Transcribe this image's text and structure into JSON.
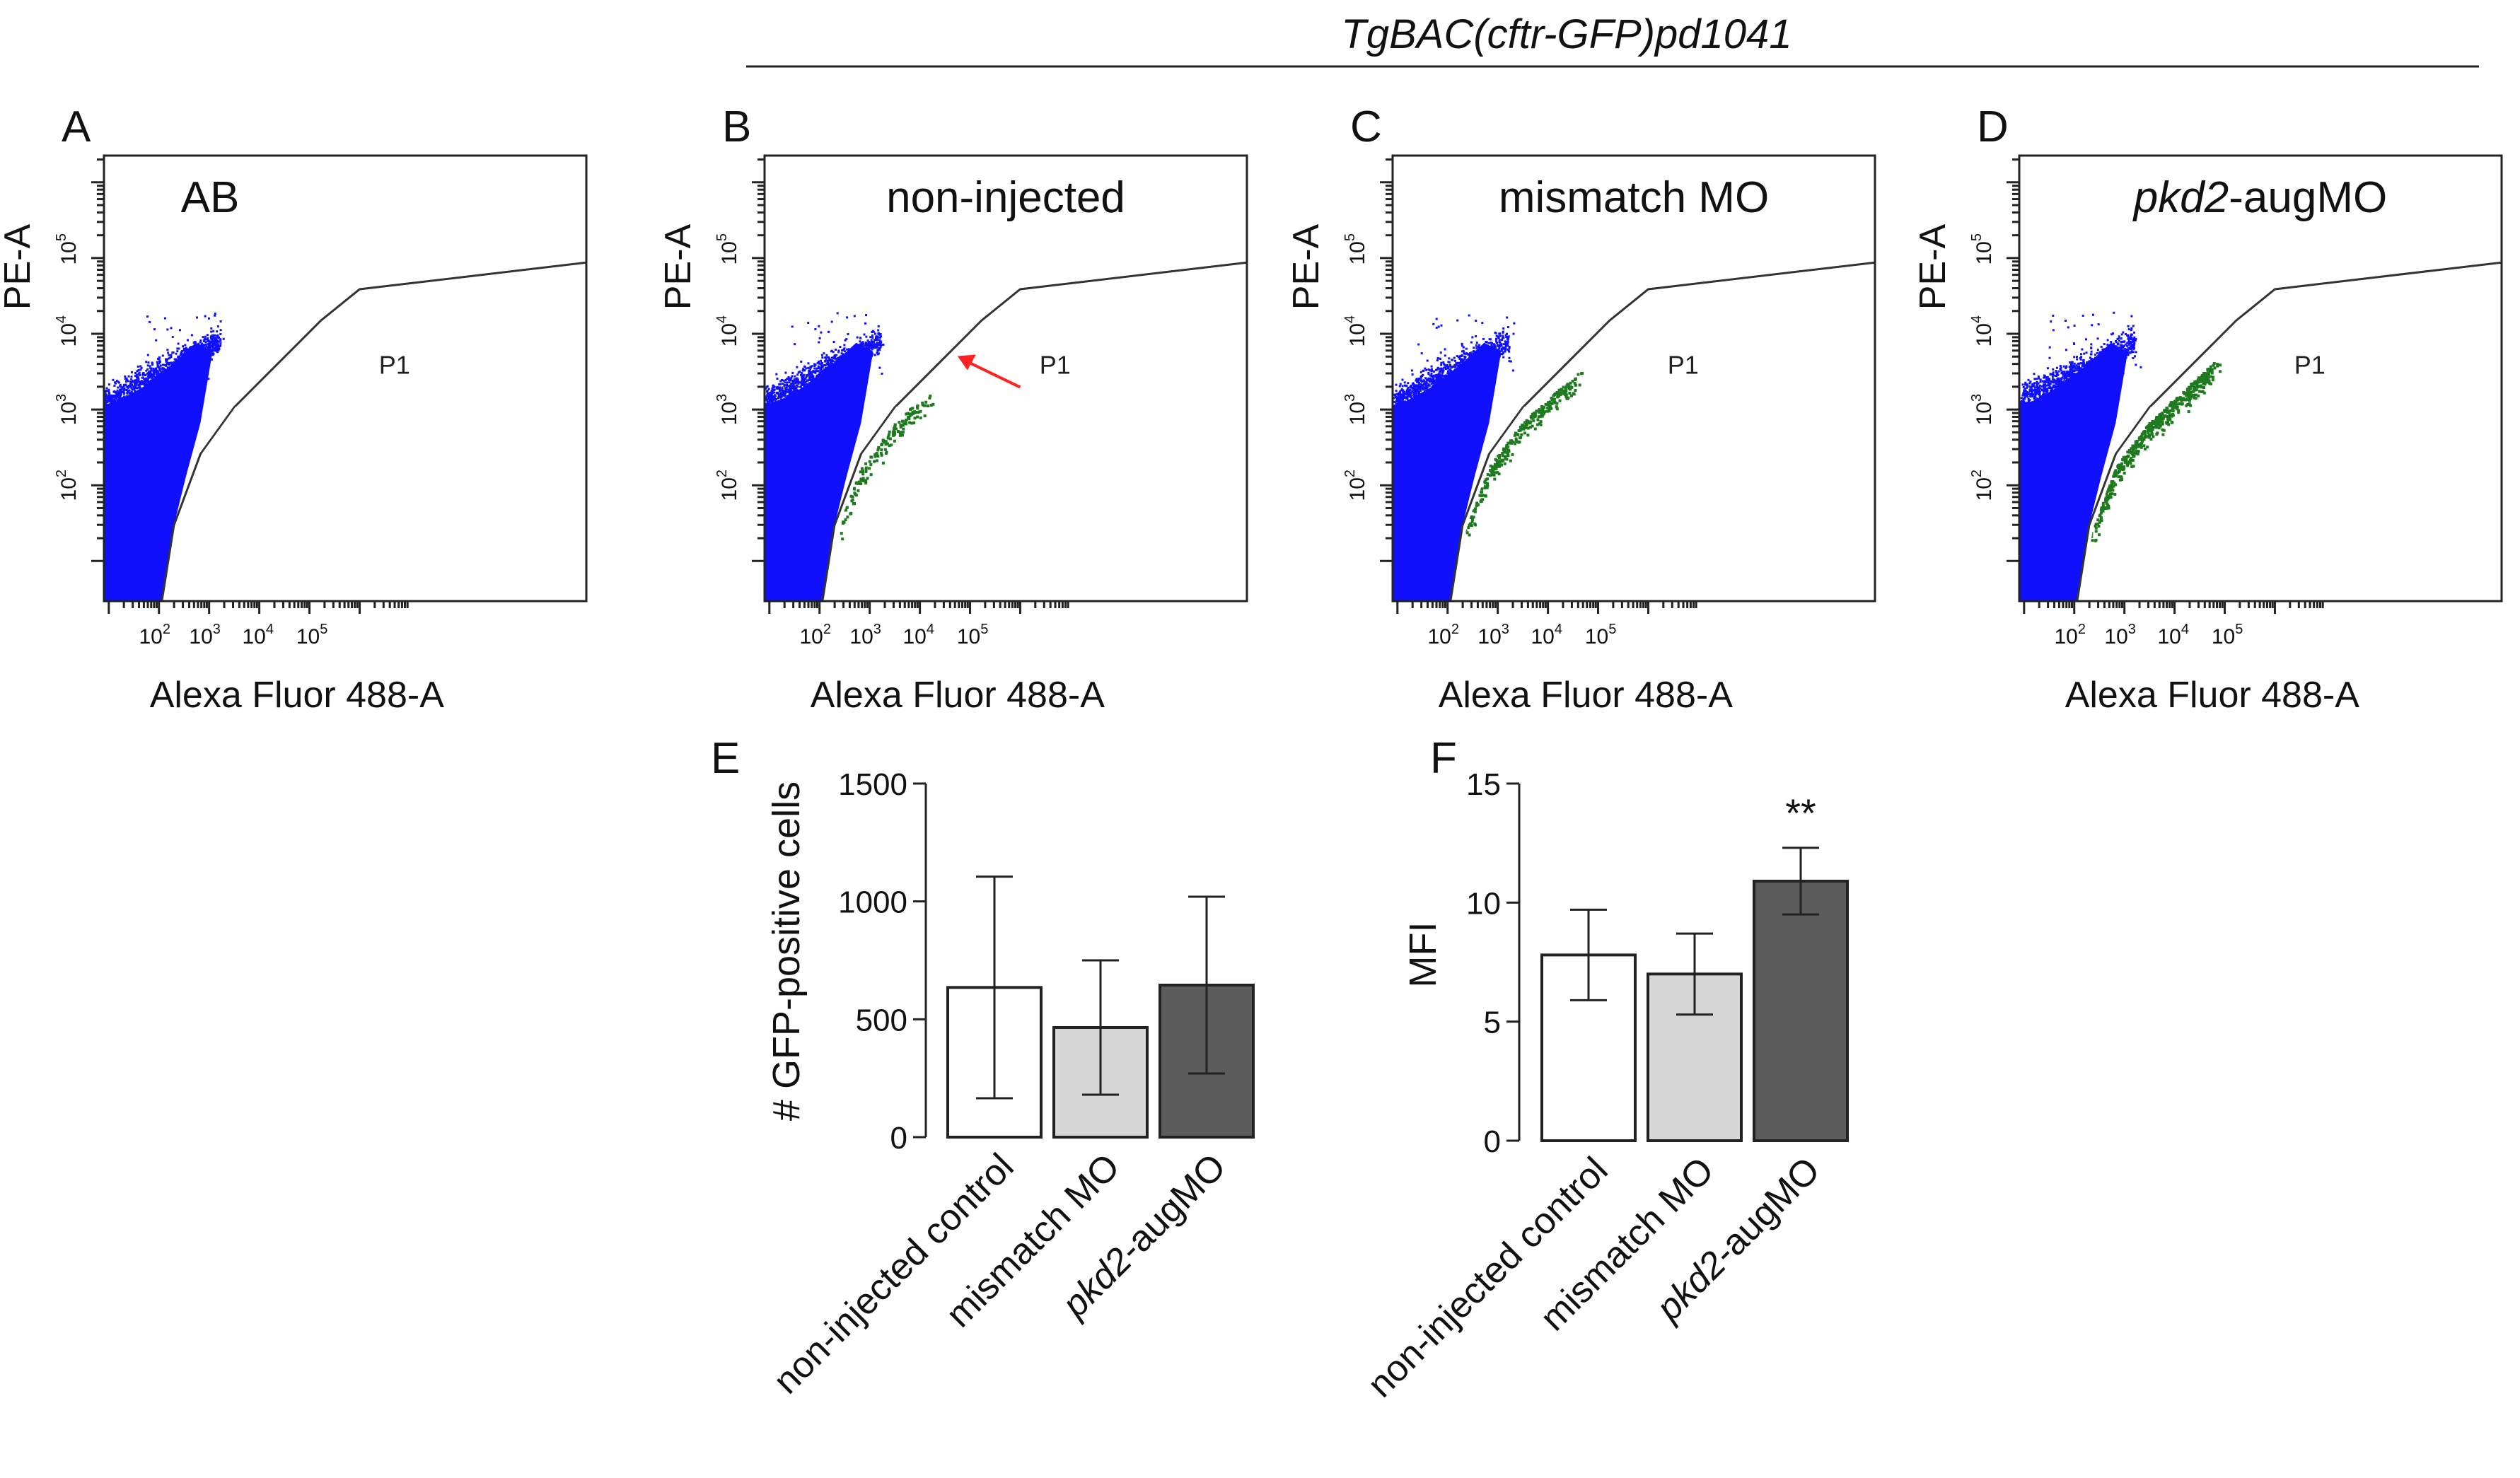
{
  "figure": {
    "header": "TgBAC(cftr-GFP)pd1041"
  },
  "colors": {
    "population": "#1010ff",
    "gfp_population": "#1f7a1f",
    "arrow": "#ff2020",
    "bar_white": "#ffffff",
    "bar_light": "#d6d6d6",
    "bar_dark": "#5c5c5c"
  },
  "flow_panels": [
    {
      "letter": "A",
      "sample": "AB",
      "italic_part": "",
      "gate": "P1",
      "xlabel": "Alexa Fluor 488-A",
      "ylabel": "PE-A",
      "green_events": 0,
      "green_spread": 0,
      "arrow": false
    },
    {
      "letter": "B",
      "sample": "non-injected",
      "italic_part": "",
      "gate": "P1",
      "xlabel": "Alexa Fluor 488-A",
      "ylabel": "PE-A",
      "green_events": 160,
      "green_spread": 0.8,
      "arrow": true
    },
    {
      "letter": "C",
      "sample": "mismatch  MO",
      "italic_part": "",
      "gate": "P1",
      "xlabel": "Alexa Fluor 488-A",
      "ylabel": "PE-A",
      "green_events": 300,
      "green_spread": 1.0,
      "arrow": false
    },
    {
      "letter": "D",
      "sample": "-augMO",
      "italic_part": "pkd2",
      "gate": "P1",
      "xlabel": "Alexa Fluor 488-A",
      "ylabel": "PE-A",
      "green_events": 520,
      "green_spread": 1.1,
      "arrow": false
    }
  ],
  "flow_ticks": {
    "x": [
      {
        "base": "10",
        "exp": "2"
      },
      {
        "base": "10",
        "exp": "3"
      },
      {
        "base": "10",
        "exp": "4"
      },
      {
        "base": "10",
        "exp": "5"
      }
    ],
    "y": [
      {
        "base": "10",
        "exp": "2"
      },
      {
        "base": "10",
        "exp": "3"
      },
      {
        "base": "10",
        "exp": "4"
      },
      {
        "base": "10",
        "exp": "5"
      }
    ]
  },
  "chart_data": [
    {
      "panel": "E",
      "type": "bar",
      "title": "",
      "xlabel": "",
      "ylabel": "# GFP-positive cells",
      "ylim": [
        0,
        1500
      ],
      "yticks": [
        0,
        500,
        1000,
        1500
      ],
      "categories": [
        {
          "pre": "non-injected control",
          "italic": "",
          "post": ""
        },
        {
          "pre": "mismatch MO",
          "italic": "",
          "post": ""
        },
        {
          "pre": "",
          "italic": "pkd2",
          "post": "-augMO"
        }
      ],
      "values": [
        635,
        465,
        645
      ],
      "error": [
        470,
        285,
        375
      ],
      "significance": [
        "",
        "",
        ""
      ]
    },
    {
      "panel": "F",
      "type": "bar",
      "title": "",
      "xlabel": "",
      "ylabel": "MFI",
      "ylim": [
        0,
        15
      ],
      "yticks": [
        0,
        5,
        10,
        15
      ],
      "categories": [
        {
          "pre": "non-injected control",
          "italic": "",
          "post": ""
        },
        {
          "pre": "mismatch MO",
          "italic": "",
          "post": ""
        },
        {
          "pre": "",
          "italic": "pkd2",
          "post": "-augMO"
        }
      ],
      "values": [
        7.8,
        7.0,
        10.9
      ],
      "error": [
        1.9,
        1.7,
        1.4
      ],
      "significance": [
        "",
        "",
        "**"
      ]
    }
  ]
}
